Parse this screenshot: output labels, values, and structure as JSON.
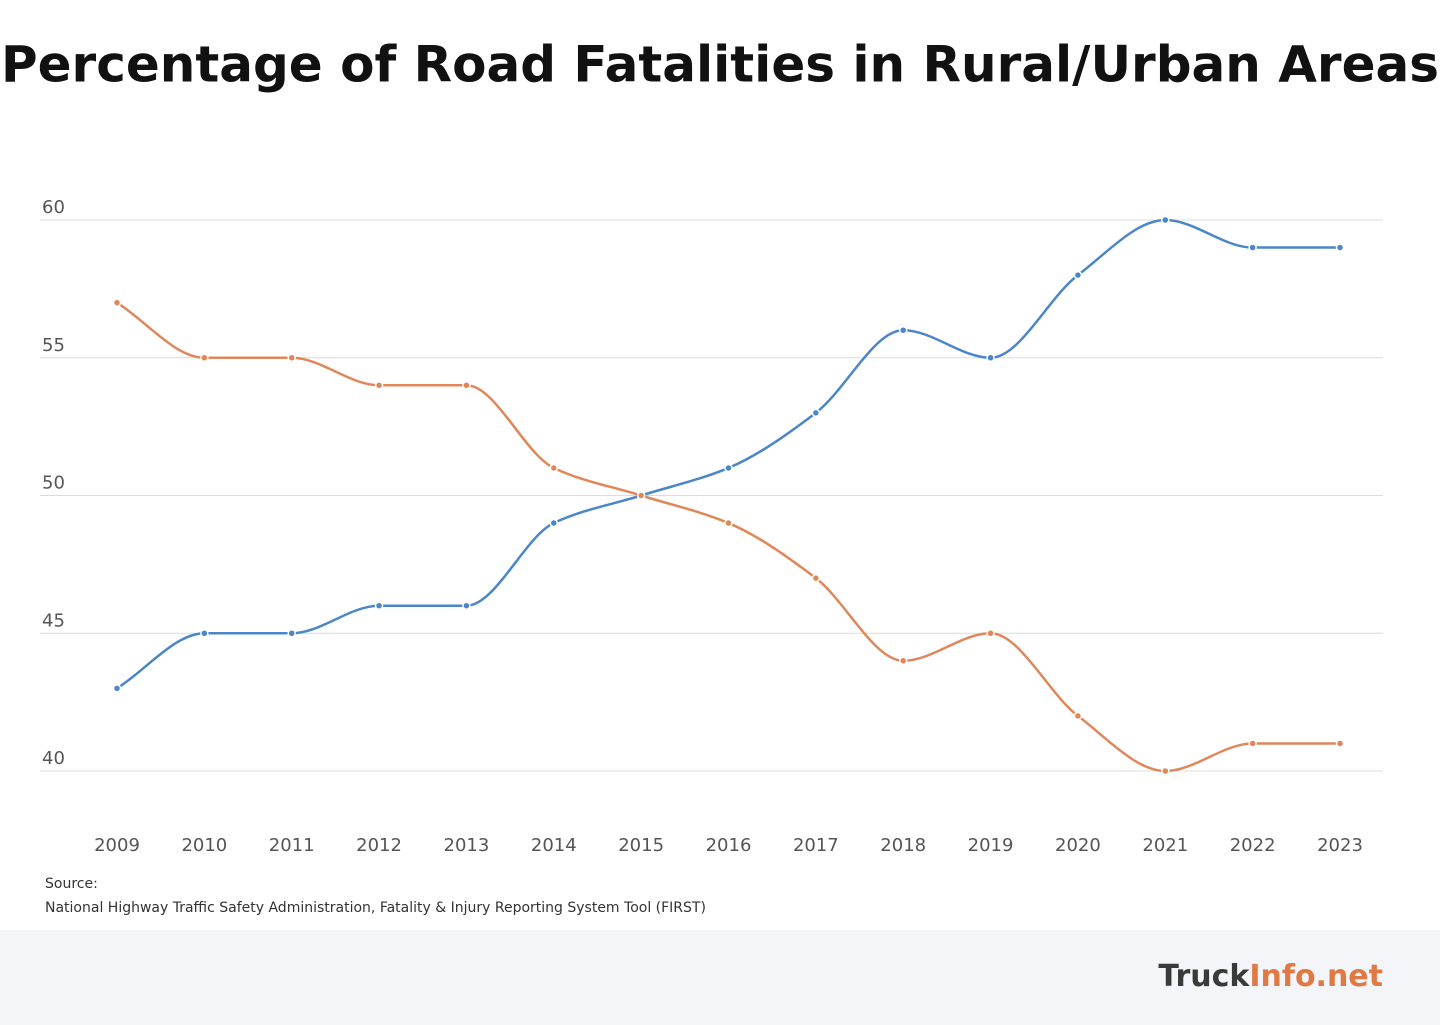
{
  "chart_data": {
    "type": "line",
    "title": "Percentage of Road Fatalities in Rural/Urban Areas",
    "categories": [
      "2009",
      "2010",
      "2011",
      "2012",
      "2013",
      "2014",
      "2015",
      "2016",
      "2017",
      "2018",
      "2019",
      "2020",
      "2021",
      "2022",
      "2023"
    ],
    "series": [
      {
        "color": "#4a86c8",
        "values": [
          43,
          45,
          45,
          46,
          46,
          49,
          50,
          51,
          53,
          56,
          55,
          58,
          60,
          59,
          59
        ]
      },
      {
        "color": "#e0875a",
        "values": [
          57,
          55,
          55,
          54,
          54,
          51,
          50,
          49,
          47,
          44,
          45,
          42,
          40,
          41,
          41
        ]
      }
    ],
    "ylim": [
      40,
      60
    ],
    "yticks": [
      40,
      45,
      50,
      55,
      60
    ],
    "grid": true,
    "source_label": "Source:",
    "source": "National Highway Traffic Safety Administration, Fatality & Injury Reporting System Tool (FIRST)",
    "brand": {
      "part1": "Truck",
      "part2": "Info.net"
    }
  }
}
